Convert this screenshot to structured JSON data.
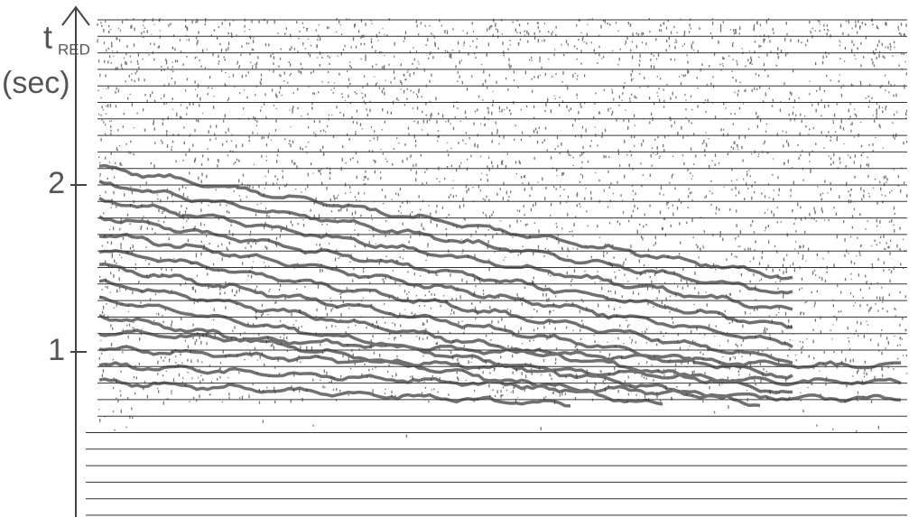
{
  "chart_data": {
    "type": "seismic",
    "ylabel_symbol": "t",
    "ylabel_subscript": "RED",
    "ylabel_unit": "(sec)",
    "ylim": [
      0,
      3
    ],
    "yticks": [
      1,
      2
    ]
  }
}
